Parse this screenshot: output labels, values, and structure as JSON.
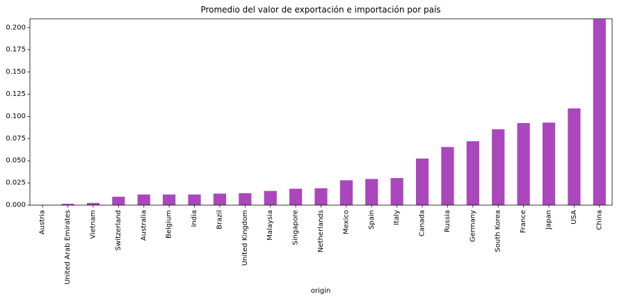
{
  "chart_data": {
    "type": "bar",
    "title": "Promedio del valor de exportación e importación por país",
    "xlabel": "origin",
    "ylabel": "",
    "ylim": [
      0,
      0.21
    ],
    "yticks": [
      0.0,
      0.025,
      0.05,
      0.075,
      0.1,
      0.125,
      0.15,
      0.175,
      0.2
    ],
    "ytick_labels": [
      "0.000",
      "0.025",
      "0.050",
      "0.075",
      "0.100",
      "0.125",
      "0.150",
      "0.175",
      "0.200"
    ],
    "grid": false,
    "bar_color": "#ab47bc",
    "categories": [
      "Austria",
      "United Arab Emirates",
      "Vietnam",
      "Switzerland",
      "Australia",
      "Belgium",
      "India",
      "Brazil",
      "United Kingdom",
      "Malaysia",
      "Singapore",
      "Netherlands",
      "Mexico",
      "Spain",
      "Italy",
      "Canada",
      "Russia",
      "Germany",
      "South Korea",
      "France",
      "Japan",
      "USA",
      "China"
    ],
    "values": [
      0.0003,
      0.0015,
      0.0025,
      0.0095,
      0.012,
      0.012,
      0.012,
      0.013,
      0.0135,
      0.016,
      0.0185,
      0.019,
      0.028,
      0.0295,
      0.0305,
      0.0525,
      0.0655,
      0.072,
      0.0855,
      0.0925,
      0.093,
      0.109,
      0.2095
    ]
  }
}
